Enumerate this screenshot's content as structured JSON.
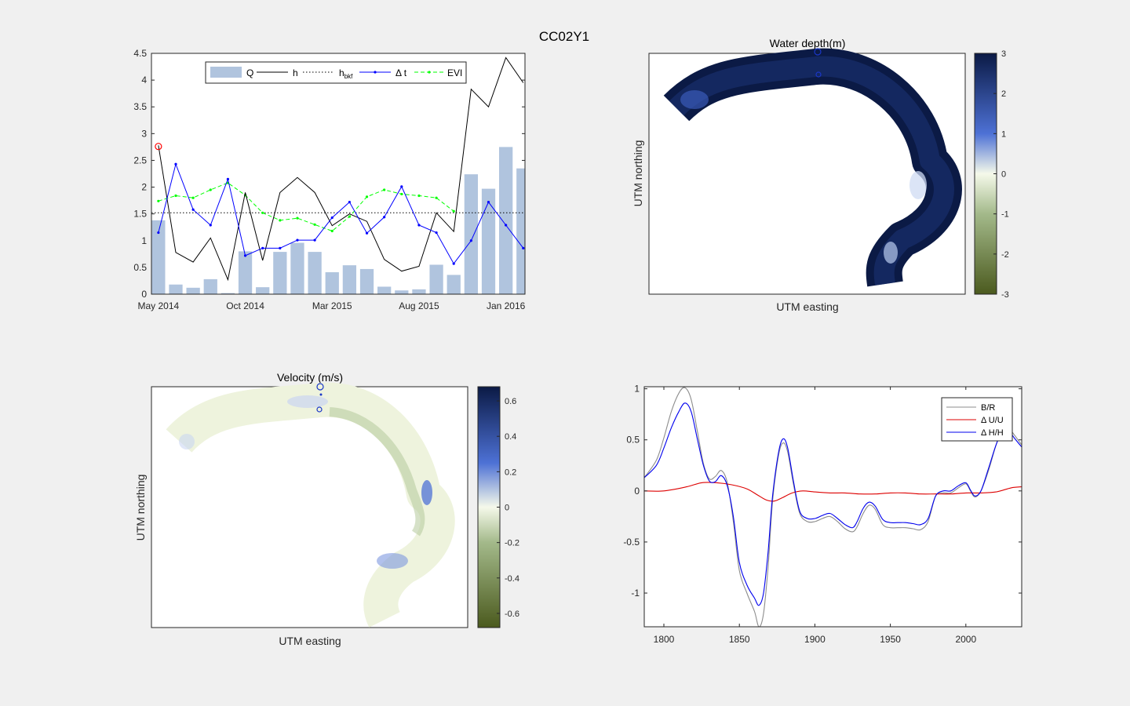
{
  "figure": {
    "title": "CC02Y1"
  },
  "colors": {
    "figure_bg": "#f0f0f0",
    "axes_bg": "#ffffff",
    "bar": "#b0c4de",
    "h": "#000000",
    "dt": "#0000ff",
    "evi": "#00ff00",
    "marker": "#ff0000",
    "br": "#8c8c8c",
    "du": "#dd0000",
    "dh": "#0000ee"
  },
  "chart_data": [
    {
      "type": "bar-line",
      "xticklabels": [
        "May 2014",
        "Oct 2014",
        "Mar 2015",
        "Aug 2015",
        "Jan 2016"
      ],
      "xtick_months": [
        0,
        5,
        10,
        15,
        20
      ],
      "xlim": [
        -0.4,
        21.1
      ],
      "ylim": [
        0,
        4.5
      ],
      "yticks": [
        "0",
        "0.5",
        "1",
        "1.5",
        "2",
        "2.5",
        "3",
        "3.5",
        "4",
        "4.5"
      ],
      "yticks_values": [
        0,
        0.5,
        1,
        1.5,
        2,
        2.5,
        3,
        3.5,
        4,
        4.5
      ],
      "legend": {
        "position": "top",
        "entries": [
          {
            "key": "Q",
            "label": "Q",
            "sub": ""
          },
          {
            "key": "h",
            "label": "h",
            "sub": ""
          },
          {
            "key": "hbkf",
            "label": "h",
            "sub": "bkf"
          },
          {
            "key": "dt",
            "label": "Δ t",
            "sub": ""
          },
          {
            "key": "evi",
            "label": "EVI",
            "sub": ""
          }
        ]
      },
      "series": {
        "Q": [
          1.38,
          0.18,
          0.12,
          0.28,
          0.02,
          0.8,
          0.13,
          0.79,
          0.96,
          0.79,
          0.41,
          0.54,
          0.47,
          0.14,
          0.07,
          0.09,
          0.55,
          0.36,
          2.24,
          1.97,
          2.75,
          2.35
        ],
        "h": [
          2.78,
          0.78,
          0.6,
          1.05,
          0.27,
          1.9,
          0.63,
          1.9,
          2.18,
          1.9,
          1.28,
          1.5,
          1.36,
          0.65,
          0.43,
          0.52,
          1.52,
          1.17,
          3.83,
          3.5,
          4.42,
          3.95
        ],
        "h_bkf": 1.52,
        "dt_x": [
          0,
          1,
          2,
          3,
          4,
          5,
          6,
          7,
          8,
          9,
          10,
          11,
          12,
          13,
          14,
          15,
          16,
          17,
          18,
          19,
          20,
          21
        ],
        "dt": [
          1.15,
          2.43,
          1.58,
          1.29,
          2.15,
          0.72,
          0.86,
          0.86,
          1.01,
          1.01,
          1.43,
          1.72,
          1.14,
          1.44,
          2.01,
          1.29,
          1.15,
          0.57,
          1.0,
          1.72,
          1.29,
          0.86
        ],
        "evi_x": [
          0,
          1,
          2,
          3,
          4,
          5,
          6,
          7,
          8,
          9,
          10,
          11,
          12,
          13,
          14,
          15,
          16,
          17
        ],
        "evi": [
          1.74,
          1.84,
          1.8,
          1.95,
          2.08,
          1.85,
          1.52,
          1.38,
          1.42,
          1.3,
          1.18,
          1.45,
          1.82,
          1.95,
          1.87,
          1.84,
          1.8,
          1.55
        ],
        "marker": {
          "x": 0,
          "y": 2.76
        }
      }
    },
    {
      "type": "heatmap",
      "title": "Water depth(m)",
      "xlabel": "UTM easting",
      "ylabel": "UTM northing",
      "colorbar_ticks": [
        "3",
        "2",
        "1",
        "0",
        "-1",
        "-2",
        "-3"
      ],
      "colorbar_values": [
        3,
        2,
        1,
        0,
        -1,
        -2,
        -3
      ],
      "clim": [
        -3,
        3
      ],
      "colormap": [
        [
          -3,
          "#4b5a1e"
        ],
        [
          -1,
          "#a3b98a"
        ],
        [
          0,
          "#f5f9ea"
        ],
        [
          1,
          "#4d71d5"
        ],
        [
          3,
          "#0b1a45"
        ]
      ]
    },
    {
      "type": "heatmap",
      "title": "Velocity (m/s)",
      "xlabel": "UTM easting",
      "ylabel": "UTM northing",
      "colorbar_ticks": [
        "0.6",
        "0.4",
        "0.2",
        "0",
        "-0.2",
        "-0.4",
        "-0.6"
      ],
      "colorbar_values": [
        0.6,
        0.4,
        0.2,
        0,
        -0.2,
        -0.4,
        -0.6
      ],
      "clim": [
        -0.68,
        0.68
      ],
      "colormap": [
        [
          -0.68,
          "#4b5a1e"
        ],
        [
          -0.2,
          "#a3b98a"
        ],
        [
          0,
          "#f5f9ea"
        ],
        [
          0.25,
          "#4d71d5"
        ],
        [
          0.68,
          "#0b1a45"
        ]
      ]
    },
    {
      "type": "line",
      "xlim": [
        1787,
        2037
      ],
      "ylim": [
        -1.33,
        1.02
      ],
      "xticks": [
        "1800",
        "1850",
        "1900",
        "1950",
        "2000"
      ],
      "xticks_values": [
        1800,
        1850,
        1900,
        1950,
        2000
      ],
      "yticks": [
        "1",
        "0.5",
        "0",
        "-0.5",
        "-1"
      ],
      "yticks_values": [
        1,
        0.5,
        0,
        -0.5,
        -1
      ],
      "legend": {
        "position": "top-right",
        "entries": [
          {
            "key": "br",
            "label": "B/R"
          },
          {
            "key": "du",
            "label": "Δ U/U"
          },
          {
            "key": "dh",
            "label": "Δ H/H"
          }
        ]
      },
      "series": [
        {
          "key": "br",
          "name": "B/R",
          "points": [
            [
              1787,
              0.13
            ],
            [
              1795,
              0.3
            ],
            [
              1800,
              0.52
            ],
            [
              1805,
              0.78
            ],
            [
              1810,
              0.96
            ],
            [
              1814,
              1.01
            ],
            [
              1818,
              0.9
            ],
            [
              1822,
              0.6
            ],
            [
              1826,
              0.28
            ],
            [
              1830,
              0.12
            ],
            [
              1834,
              0.14
            ],
            [
              1838,
              0.2
            ],
            [
              1842,
              0.08
            ],
            [
              1846,
              -0.3
            ],
            [
              1850,
              -0.78
            ],
            [
              1855,
              -1.0
            ],
            [
              1860,
              -1.18
            ],
            [
              1863,
              -1.33
            ],
            [
              1866,
              -1.2
            ],
            [
              1869,
              -0.75
            ],
            [
              1872,
              -0.1
            ],
            [
              1876,
              0.35
            ],
            [
              1879,
              0.47
            ],
            [
              1882,
              0.38
            ],
            [
              1886,
              0.05
            ],
            [
              1890,
              -0.22
            ],
            [
              1895,
              -0.3
            ],
            [
              1900,
              -0.3
            ],
            [
              1905,
              -0.27
            ],
            [
              1910,
              -0.25
            ],
            [
              1915,
              -0.3
            ],
            [
              1920,
              -0.37
            ],
            [
              1925,
              -0.4
            ],
            [
              1928,
              -0.35
            ],
            [
              1932,
              -0.22
            ],
            [
              1936,
              -0.14
            ],
            [
              1940,
              -0.18
            ],
            [
              1945,
              -0.33
            ],
            [
              1950,
              -0.36
            ],
            [
              1955,
              -0.36
            ],
            [
              1960,
              -0.36
            ],
            [
              1965,
              -0.37
            ],
            [
              1970,
              -0.38
            ],
            [
              1975,
              -0.3
            ],
            [
              1980,
              -0.05
            ],
            [
              1985,
              -0.02
            ],
            [
              1990,
              -0.02
            ],
            [
              1995,
              0.03
            ],
            [
              2000,
              0.07
            ],
            [
              2003,
              0.0
            ],
            [
              2006,
              -0.06
            ],
            [
              2010,
              0.0
            ],
            [
              2015,
              0.2
            ],
            [
              2020,
              0.45
            ],
            [
              2024,
              0.6
            ],
            [
              2028,
              0.62
            ],
            [
              2032,
              0.55
            ],
            [
              2037,
              0.45
            ]
          ]
        },
        {
          "key": "du",
          "name": "Δ U/U",
          "points": [
            [
              1787,
              0.0
            ],
            [
              1800,
              0.0
            ],
            [
              1815,
              0.04
            ],
            [
              1825,
              0.08
            ],
            [
              1835,
              0.08
            ],
            [
              1845,
              0.06
            ],
            [
              1855,
              0.02
            ],
            [
              1862,
              -0.04
            ],
            [
              1868,
              -0.09
            ],
            [
              1873,
              -0.1
            ],
            [
              1878,
              -0.07
            ],
            [
              1885,
              -0.02
            ],
            [
              1892,
              0.0
            ],
            [
              1900,
              -0.01
            ],
            [
              1910,
              -0.02
            ],
            [
              1920,
              -0.02
            ],
            [
              1930,
              -0.03
            ],
            [
              1940,
              -0.03
            ],
            [
              1950,
              -0.02
            ],
            [
              1960,
              -0.02
            ],
            [
              1970,
              -0.03
            ],
            [
              1980,
              -0.03
            ],
            [
              1990,
              -0.03
            ],
            [
              2000,
              -0.02
            ],
            [
              2010,
              -0.02
            ],
            [
              2020,
              -0.01
            ],
            [
              2030,
              0.03
            ],
            [
              2037,
              0.04
            ]
          ]
        },
        {
          "key": "dh",
          "name": "Δ H/H",
          "points": [
            [
              1787,
              0.13
            ],
            [
              1795,
              0.25
            ],
            [
              1800,
              0.42
            ],
            [
              1805,
              0.62
            ],
            [
              1810,
              0.78
            ],
            [
              1814,
              0.86
            ],
            [
              1818,
              0.78
            ],
            [
              1822,
              0.52
            ],
            [
              1826,
              0.26
            ],
            [
              1830,
              0.1
            ],
            [
              1834,
              0.09
            ],
            [
              1838,
              0.15
            ],
            [
              1842,
              0.05
            ],
            [
              1846,
              -0.25
            ],
            [
              1850,
              -0.7
            ],
            [
              1855,
              -0.92
            ],
            [
              1860,
              -1.05
            ],
            [
              1863,
              -1.12
            ],
            [
              1866,
              -1.0
            ],
            [
              1869,
              -0.6
            ],
            [
              1872,
              -0.05
            ],
            [
              1876,
              0.38
            ],
            [
              1879,
              0.51
            ],
            [
              1882,
              0.42
            ],
            [
              1886,
              0.08
            ],
            [
              1890,
              -0.2
            ],
            [
              1895,
              -0.27
            ],
            [
              1900,
              -0.27
            ],
            [
              1905,
              -0.24
            ],
            [
              1910,
              -0.22
            ],
            [
              1915,
              -0.27
            ],
            [
              1920,
              -0.33
            ],
            [
              1925,
              -0.36
            ],
            [
              1928,
              -0.3
            ],
            [
              1932,
              -0.17
            ],
            [
              1936,
              -0.11
            ],
            [
              1940,
              -0.15
            ],
            [
              1945,
              -0.28
            ],
            [
              1950,
              -0.31
            ],
            [
              1955,
              -0.31
            ],
            [
              1960,
              -0.31
            ],
            [
              1965,
              -0.32
            ],
            [
              1970,
              -0.33
            ],
            [
              1975,
              -0.27
            ],
            [
              1980,
              -0.05
            ],
            [
              1985,
              0.0
            ],
            [
              1990,
              0.0
            ],
            [
              1995,
              0.05
            ],
            [
              2000,
              0.08
            ],
            [
              2003,
              0.01
            ],
            [
              2006,
              -0.05
            ],
            [
              2010,
              0.0
            ],
            [
              2015,
              0.22
            ],
            [
              2020,
              0.45
            ],
            [
              2024,
              0.58
            ],
            [
              2028,
              0.6
            ],
            [
              2032,
              0.52
            ],
            [
              2037,
              0.43
            ]
          ]
        }
      ]
    }
  ]
}
